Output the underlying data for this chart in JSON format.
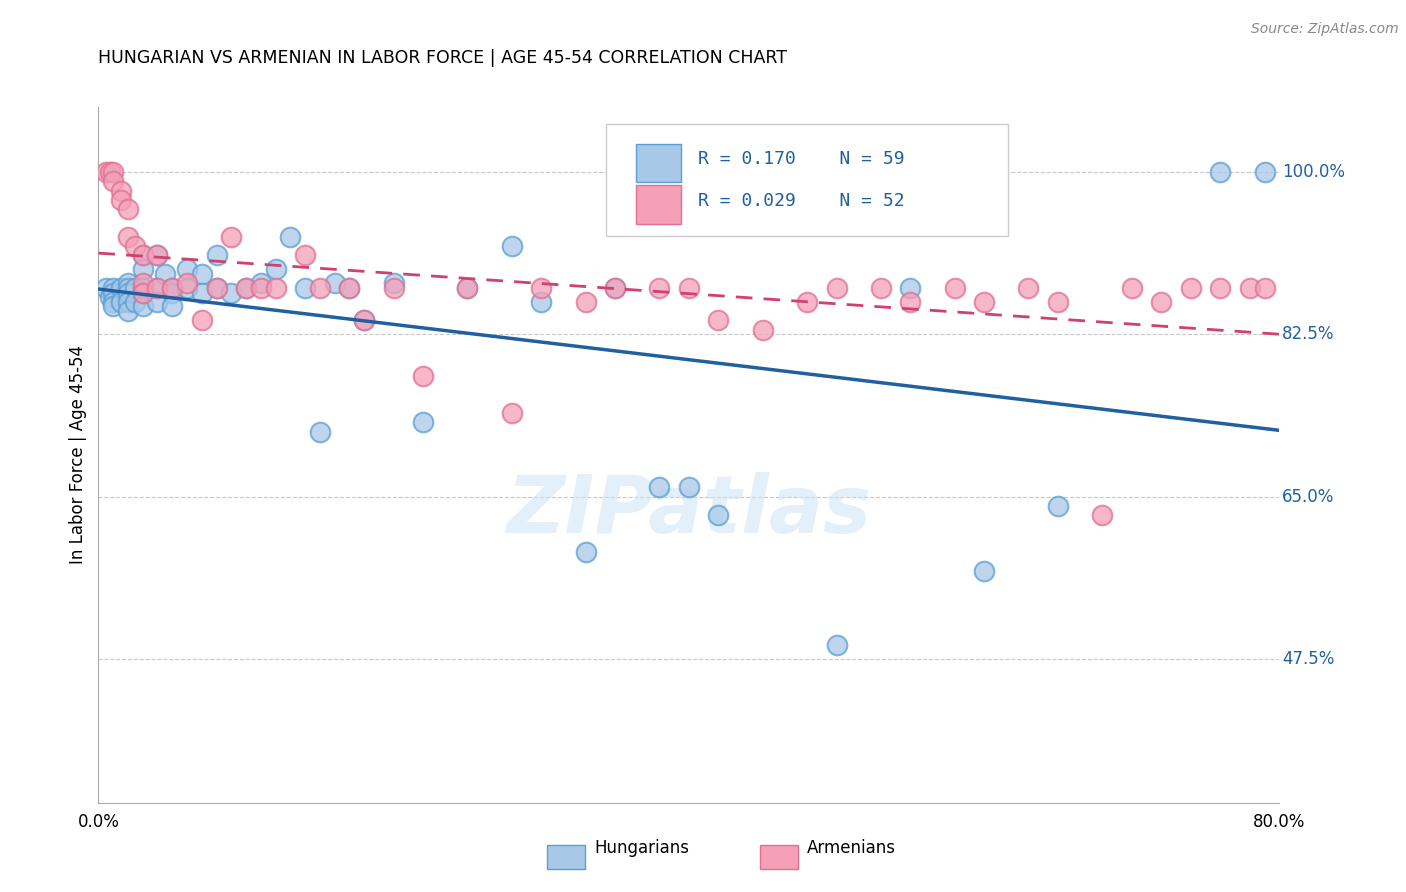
{
  "title": "HUNGARIAN VS ARMENIAN IN LABOR FORCE | AGE 45-54 CORRELATION CHART",
  "source": "Source: ZipAtlas.com",
  "ylabel": "In Labor Force | Age 45-54",
  "ytick_labels": [
    "100.0%",
    "82.5%",
    "65.0%",
    "47.5%"
  ],
  "ytick_values": [
    1.0,
    0.825,
    0.65,
    0.475
  ],
  "xlim": [
    0.0,
    0.8
  ],
  "ylim": [
    0.32,
    1.07
  ],
  "blue_R": 0.17,
  "blue_N": 59,
  "pink_R": 0.029,
  "pink_N": 52,
  "blue_color": "#A8C8E8",
  "pink_color": "#F4A0B8",
  "blue_edge_color": "#5A9FD4",
  "pink_edge_color": "#E07090",
  "blue_line_color": "#2060A0",
  "pink_line_color": "#D04070",
  "legend_label_blue": "Hungarians",
  "legend_label_pink": "Armenians",
  "watermark_text": "ZIPatlas",
  "blue_x": [
    0.005,
    0.008,
    0.01,
    0.01,
    0.01,
    0.01,
    0.015,
    0.015,
    0.02,
    0.02,
    0.02,
    0.02,
    0.02,
    0.025,
    0.025,
    0.03,
    0.03,
    0.03,
    0.03,
    0.03,
    0.04,
    0.04,
    0.04,
    0.045,
    0.05,
    0.05,
    0.05,
    0.06,
    0.06,
    0.07,
    0.07,
    0.08,
    0.08,
    0.09,
    0.1,
    0.11,
    0.12,
    0.13,
    0.14,
    0.15,
    0.16,
    0.17,
    0.18,
    0.2,
    0.22,
    0.25,
    0.28,
    0.3,
    0.33,
    0.35,
    0.38,
    0.4,
    0.42,
    0.5,
    0.55,
    0.6,
    0.65,
    0.76,
    0.79
  ],
  "blue_y": [
    0.875,
    0.865,
    0.875,
    0.87,
    0.86,
    0.855,
    0.875,
    0.86,
    0.88,
    0.875,
    0.87,
    0.86,
    0.85,
    0.875,
    0.86,
    0.91,
    0.895,
    0.875,
    0.87,
    0.855,
    0.91,
    0.875,
    0.86,
    0.89,
    0.875,
    0.87,
    0.855,
    0.895,
    0.875,
    0.89,
    0.87,
    0.91,
    0.875,
    0.87,
    0.875,
    0.88,
    0.895,
    0.93,
    0.875,
    0.72,
    0.88,
    0.875,
    0.84,
    0.88,
    0.73,
    0.875,
    0.92,
    0.86,
    0.59,
    0.875,
    0.66,
    0.66,
    0.63,
    0.49,
    0.875,
    0.57,
    0.64,
    1.0,
    1.0
  ],
  "pink_x": [
    0.005,
    0.008,
    0.01,
    0.01,
    0.015,
    0.015,
    0.02,
    0.02,
    0.025,
    0.03,
    0.03,
    0.03,
    0.04,
    0.04,
    0.05,
    0.06,
    0.07,
    0.08,
    0.09,
    0.1,
    0.11,
    0.12,
    0.14,
    0.15,
    0.17,
    0.18,
    0.2,
    0.22,
    0.25,
    0.28,
    0.3,
    0.33,
    0.35,
    0.38,
    0.4,
    0.42,
    0.45,
    0.48,
    0.5,
    0.53,
    0.55,
    0.58,
    0.6,
    0.63,
    0.65,
    0.68,
    0.7,
    0.72,
    0.74,
    0.76,
    0.78,
    0.79
  ],
  "pink_y": [
    1.0,
    1.0,
    1.0,
    0.99,
    0.98,
    0.97,
    0.96,
    0.93,
    0.92,
    0.91,
    0.88,
    0.87,
    0.91,
    0.875,
    0.875,
    0.88,
    0.84,
    0.875,
    0.93,
    0.875,
    0.875,
    0.875,
    0.91,
    0.875,
    0.875,
    0.84,
    0.875,
    0.78,
    0.875,
    0.74,
    0.875,
    0.86,
    0.875,
    0.875,
    0.875,
    0.84,
    0.83,
    0.86,
    0.875,
    0.875,
    0.86,
    0.875,
    0.86,
    0.875,
    0.86,
    0.63,
    0.875,
    0.86,
    0.875,
    0.875,
    0.875,
    0.875
  ]
}
